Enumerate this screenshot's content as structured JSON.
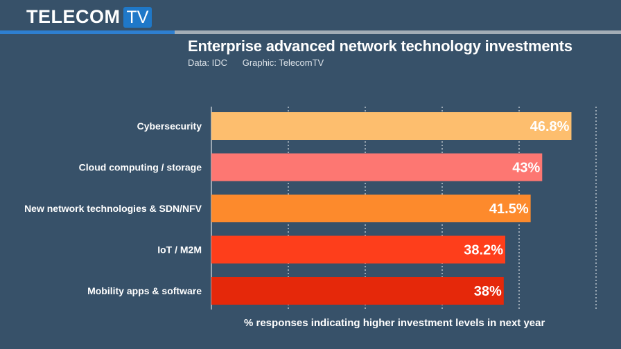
{
  "brand": {
    "name": "TELECOM",
    "suffix": "TV"
  },
  "header": {
    "title": "Enterprise advanced network technology investments",
    "data_source": "Data: IDC",
    "graphic_credit": "Graphic: TelecomTV"
  },
  "chart_data": {
    "type": "bar",
    "orientation": "horizontal",
    "categories": [
      "Cybersecurity",
      "Cloud computing / storage",
      "New network technologies & SDN/NFV",
      "IoT / M2M",
      "Mobility apps & software"
    ],
    "values": [
      46.8,
      43,
      41.5,
      38.2,
      38
    ],
    "value_labels": [
      "46.8%",
      "43%",
      "41.5%",
      "38.2%",
      "38%"
    ],
    "colors": [
      "#fdbe6e",
      "#fd7772",
      "#fd8a2c",
      "#fe3e1b",
      "#e5280a"
    ],
    "title": "Enterprise advanced network technology investments",
    "xlabel": "% responses indicating higher investment levels in next year",
    "ylabel": "",
    "xlim": [
      0,
      50
    ],
    "grid": true
  }
}
